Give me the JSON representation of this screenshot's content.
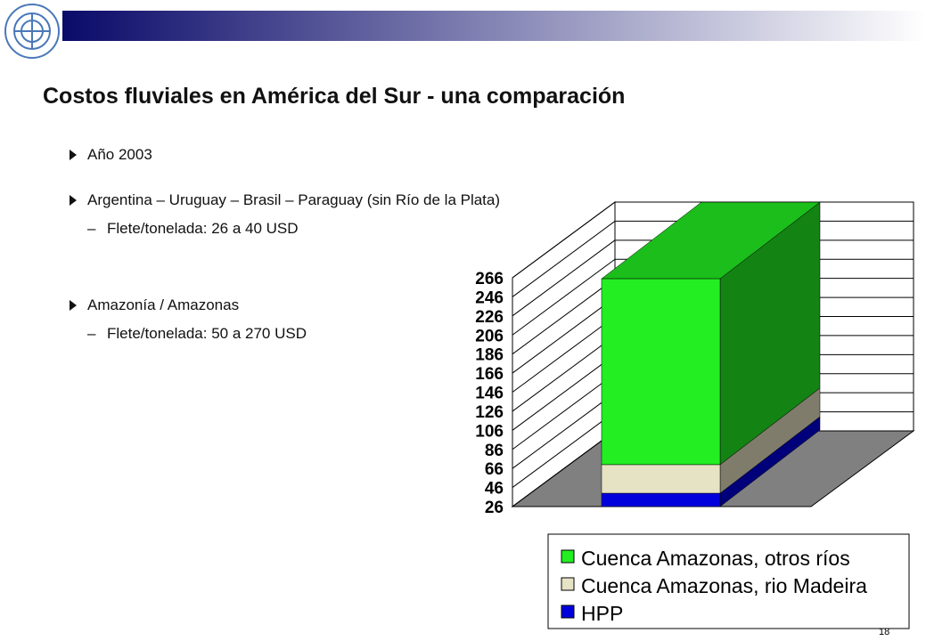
{
  "header": {
    "title": "Costos fluviales en América del Sur - una comparación"
  },
  "bullets": [
    {
      "text": "Año 2003"
    },
    {
      "text": "Argentina – Uruguay – Brasil – Paraguay (sin Río de la Plata)",
      "sub": "Flete/tonelada: 26 a 40 USD"
    },
    {
      "text": "Amazonía / Amazonas",
      "sub": "Flete/tonelada: 50 a 270 USD"
    }
  ],
  "page_number": "18",
  "chart_data": {
    "type": "bar3d",
    "stacked": true,
    "categories": [
      null
    ],
    "series": [
      {
        "name": "HPP",
        "color": "#0000dd",
        "values": [
          40
        ]
      },
      {
        "name": "Cuenca Amazonas, rio Madeira",
        "color": "#e6e2c4",
        "values": [
          30
        ]
      },
      {
        "name": "Cuenca Amazonas, otros ríos",
        "color": "#22ee22",
        "values": [
          195
        ]
      }
    ],
    "ylim": [
      26,
      266
    ],
    "yticks": [
      26,
      46,
      66,
      86,
      106,
      126,
      146,
      166,
      186,
      206,
      226,
      246,
      266
    ],
    "grid": true,
    "legend": "bottom-right"
  }
}
